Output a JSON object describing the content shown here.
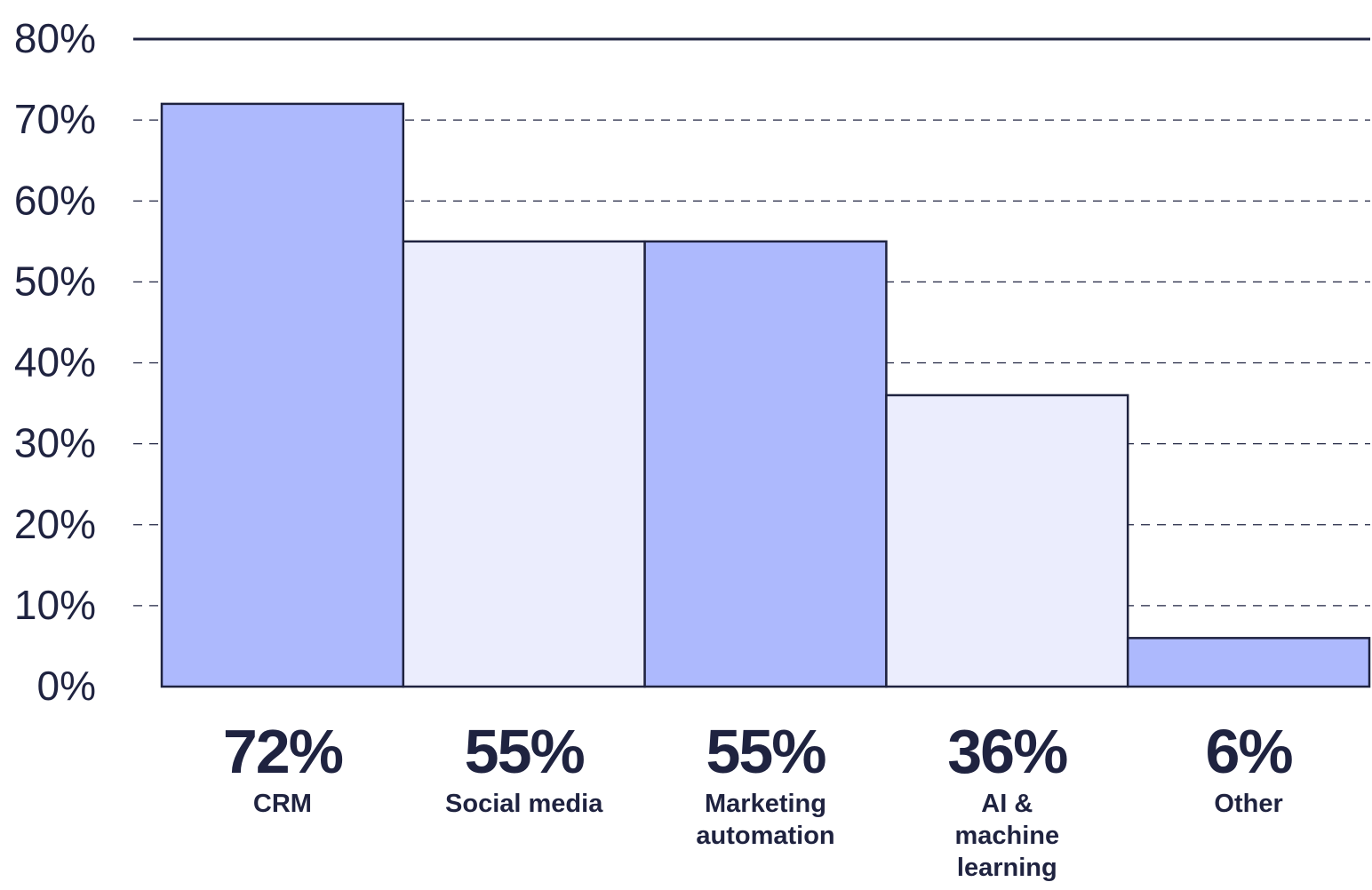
{
  "chart_data": {
    "type": "bar",
    "title": "",
    "xlabel": "",
    "ylabel": "",
    "ylim": [
      0,
      80
    ],
    "yticks": [
      "0%",
      "10%",
      "20%",
      "30%",
      "40%",
      "50%",
      "60%",
      "70%",
      "80%"
    ],
    "grid": true,
    "categories": [
      "CRM",
      "Social media",
      "Marketing automation",
      "AI & machine learning",
      "Other"
    ],
    "category_lines": [
      [
        "CRM"
      ],
      [
        "Social media"
      ],
      [
        "Marketing",
        "automation"
      ],
      [
        "AI &",
        "machine",
        "learning"
      ],
      [
        "Other"
      ]
    ],
    "values": [
      72,
      55,
      55,
      36,
      6
    ],
    "value_labels": [
      "72%",
      "55%",
      "55%",
      "36%",
      "6%"
    ],
    "bar_colors": [
      "#adb9fd",
      "#ebedfd",
      "#adb9fd",
      "#ebedfd",
      "#adb9fd"
    ],
    "stroke_color": "#1f2340",
    "text_color": "#1f2340"
  }
}
